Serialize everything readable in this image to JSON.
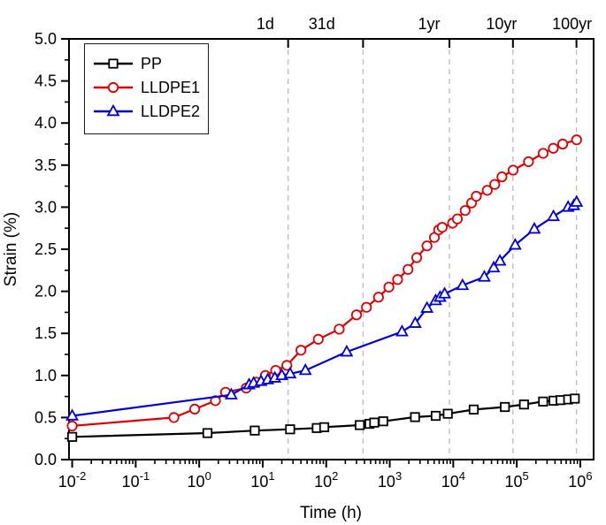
{
  "chart_data": {
    "type": "line",
    "title": "",
    "xlabel": "Time (h)",
    "ylabel": "Strain (%)",
    "x_scale": "log",
    "x_range_log": [
      -2.05,
      6.21
    ],
    "y_range": [
      0,
      5
    ],
    "y_major_step": 0.5,
    "y_minor_step": 0.25,
    "x_decades": [
      -2,
      -1,
      0,
      1,
      2,
      3,
      4,
      5,
      6
    ],
    "grid": "vertical-dashed-only",
    "gridline_color": "#bbbbbb",
    "legend_position": "top-left",
    "top_axis_ticks": [
      {
        "label": "1d",
        "grid_log": 1.4,
        "label_log": 1.04
      },
      {
        "label": "31d",
        "grid_log": 2.58,
        "label_log": 1.93
      },
      {
        "label": "1yr",
        "grid_log": 3.94,
        "label_log": 3.62
      },
      {
        "label": "10yr",
        "grid_log": 4.94,
        "label_log": 4.76
      },
      {
        "label": "100yr",
        "grid_log": 5.94,
        "label_log": 5.87
      }
    ],
    "series": [
      {
        "name": "PP",
        "color": "#000000",
        "marker": "square",
        "points": [
          [
            0.01,
            0.27
          ],
          [
            1.35,
            0.315
          ],
          [
            7.5,
            0.345
          ],
          [
            27,
            0.36
          ],
          [
            71,
            0.375
          ],
          [
            93,
            0.385
          ],
          [
            337,
            0.41
          ],
          [
            480,
            0.425
          ],
          [
            570,
            0.44
          ],
          [
            790,
            0.455
          ],
          [
            2500,
            0.505
          ],
          [
            5300,
            0.52
          ],
          [
            8200,
            0.545
          ],
          [
            21000,
            0.595
          ],
          [
            65000,
            0.625
          ],
          [
            130000,
            0.655
          ],
          [
            260000,
            0.69
          ],
          [
            380000,
            0.7
          ],
          [
            490000,
            0.707
          ],
          [
            645000,
            0.715
          ],
          [
            820000,
            0.725
          ]
        ]
      },
      {
        "name": "LLDPE1",
        "color": "#e00000",
        "marker": "circle",
        "points": [
          [
            0.01,
            0.4
          ],
          [
            0.4,
            0.5
          ],
          [
            0.85,
            0.6
          ],
          [
            1.8,
            0.7
          ],
          [
            2.6,
            0.8
          ],
          [
            5.5,
            0.85
          ],
          [
            8,
            0.92
          ],
          [
            11,
            1.0
          ],
          [
            16,
            1.06
          ],
          [
            24,
            1.12
          ],
          [
            40,
            1.3
          ],
          [
            75,
            1.43
          ],
          [
            160,
            1.55
          ],
          [
            300,
            1.72
          ],
          [
            430,
            1.81
          ],
          [
            665,
            1.93
          ],
          [
            970,
            2.05
          ],
          [
            1330,
            2.14
          ],
          [
            1940,
            2.26
          ],
          [
            2660,
            2.4
          ],
          [
            3860,
            2.54
          ],
          [
            5050,
            2.64
          ],
          [
            5900,
            2.73
          ],
          [
            6700,
            2.76
          ],
          [
            9750,
            2.81
          ],
          [
            11600,
            2.86
          ],
          [
            15400,
            2.96
          ],
          [
            19400,
            3.05
          ],
          [
            23100,
            3.13
          ],
          [
            34300,
            3.2
          ],
          [
            45000,
            3.27
          ],
          [
            58400,
            3.36
          ],
          [
            87600,
            3.44
          ],
          [
            153000,
            3.54
          ],
          [
            260000,
            3.64
          ],
          [
            376000,
            3.7
          ],
          [
            529000,
            3.75
          ],
          [
            876000,
            3.8
          ]
        ]
      },
      {
        "name": "LLDPE2",
        "color": "#0000dd",
        "marker": "triangle",
        "points": [
          [
            0.01,
            0.52
          ],
          [
            3.2,
            0.77
          ],
          [
            6.1,
            0.89
          ],
          [
            7.2,
            0.91
          ],
          [
            9.4,
            0.93
          ],
          [
            12,
            0.95
          ],
          [
            15.5,
            0.97
          ],
          [
            20,
            1.0
          ],
          [
            27,
            1.02
          ],
          [
            47,
            1.06
          ],
          [
            210,
            1.28
          ],
          [
            1560,
            1.52
          ],
          [
            2520,
            1.62
          ],
          [
            3860,
            1.8
          ],
          [
            5280,
            1.89
          ],
          [
            6200,
            1.93
          ],
          [
            7310,
            1.97
          ],
          [
            14000,
            2.07
          ],
          [
            30800,
            2.17
          ],
          [
            43400,
            2.28
          ],
          [
            54300,
            2.36
          ],
          [
            94400,
            2.55
          ],
          [
            189000,
            2.74
          ],
          [
            378000,
            2.89
          ],
          [
            643000,
            3.0
          ],
          [
            790000,
            3.02
          ],
          [
            876000,
            3.06
          ]
        ]
      }
    ]
  }
}
